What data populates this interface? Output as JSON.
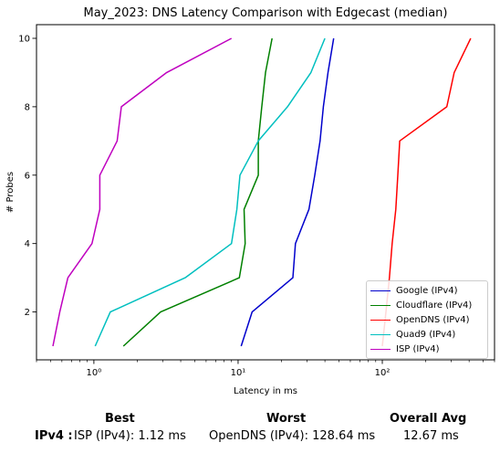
{
  "chart_data": {
    "type": "line",
    "title": "May_2023: DNS Latency Comparison with Edgecast (median)",
    "xlabel": "Latency in ms",
    "ylabel": "# Probes",
    "xscale": "log",
    "xlim": [
      0.4,
      600
    ],
    "ylim": [
      0.6,
      10.4
    ],
    "xticks": [
      {
        "value": 1,
        "label": "10⁰"
      },
      {
        "value": 10,
        "label": "10¹"
      },
      {
        "value": 100,
        "label": "10²"
      }
    ],
    "yticks": [
      2,
      4,
      6,
      8,
      10
    ],
    "grid": false,
    "legend_position": "lower right",
    "series": [
      {
        "name": "Google (IPv4)",
        "color": "#0000cc",
        "points": [
          [
            10.5,
            1
          ],
          [
            12.5,
            2
          ],
          [
            24,
            3
          ],
          [
            25,
            4
          ],
          [
            31,
            5
          ],
          [
            34,
            6
          ],
          [
            37,
            7
          ],
          [
            39,
            8
          ],
          [
            42,
            9
          ],
          [
            46,
            10
          ]
        ]
      },
      {
        "name": "Cloudflare (IPv4)",
        "color": "#008000",
        "points": [
          [
            1.6,
            1
          ],
          [
            2.9,
            2
          ],
          [
            10.2,
            3
          ],
          [
            11.2,
            4
          ],
          [
            11,
            5
          ],
          [
            13.8,
            6
          ],
          [
            13.8,
            7
          ],
          [
            14.6,
            8
          ],
          [
            15.5,
            9
          ],
          [
            17.2,
            10
          ]
        ]
      },
      {
        "name": "OpenDNS (IPv4)",
        "color": "#ff0000",
        "points": [
          [
            100,
            1
          ],
          [
            106,
            2
          ],
          [
            112,
            3
          ],
          [
            117,
            4
          ],
          [
            124,
            5
          ],
          [
            128,
            6
          ],
          [
            132,
            7
          ],
          [
            280,
            8
          ],
          [
            315,
            9
          ],
          [
            410,
            10
          ]
        ]
      },
      {
        "name": "Quad9 (IPv4)",
        "color": "#00bfbf",
        "points": [
          [
            1.02,
            1
          ],
          [
            1.3,
            2
          ],
          [
            4.3,
            3
          ],
          [
            9,
            4
          ],
          [
            9.8,
            5
          ],
          [
            10.3,
            6
          ],
          [
            13.8,
            7
          ],
          [
            22,
            8
          ],
          [
            32,
            9
          ],
          [
            40,
            10
          ]
        ]
      },
      {
        "name": "ISP (IPv4)",
        "color": "#bf00bf",
        "points": [
          [
            0.52,
            1
          ],
          [
            0.58,
            2
          ],
          [
            0.66,
            3
          ],
          [
            0.97,
            4
          ],
          [
            1.1,
            5
          ],
          [
            1.1,
            6
          ],
          [
            1.45,
            7
          ],
          [
            1.55,
            8
          ],
          [
            3.2,
            9
          ],
          [
            9,
            10
          ]
        ]
      }
    ]
  },
  "summary": {
    "best_header": "Best",
    "worst_header": "Worst",
    "avg_header": "Overall Avg",
    "row_label": "IPv4 :",
    "best": "ISP (IPv4): 1.12 ms",
    "worst": "OpenDNS (IPv4): 128.64 ms",
    "avg": "12.67 ms"
  }
}
